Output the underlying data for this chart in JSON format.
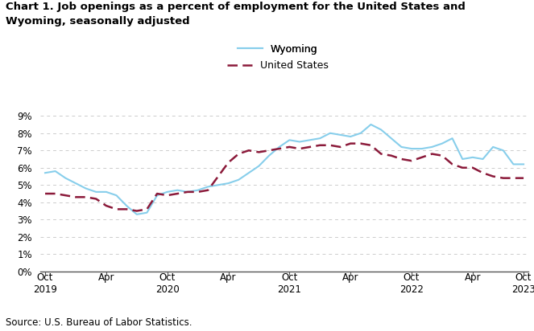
{
  "title_line1": "Chart 1. Job openings as a percent of employment for the United States and",
  "title_line2": "Wyoming, seasonally adjusted",
  "source": "Source: U.S. Bureau of Labor Statistics.",
  "wyoming_color": "#87CEEB",
  "us_color": "#8B1A3A",
  "background_color": "#FFFFFF",
  "grid_color": "#CCCCCC",
  "ylim": [
    0,
    0.09
  ],
  "yticks": [
    0,
    0.01,
    0.02,
    0.03,
    0.04,
    0.05,
    0.06,
    0.07,
    0.08,
    0.09
  ],
  "ytick_labels": [
    "0%",
    "1%",
    "2%",
    "3%",
    "4%",
    "5%",
    "6%",
    "7%",
    "8%",
    "9%"
  ],
  "wyoming": [
    0.057,
    0.058,
    0.054,
    0.051,
    0.048,
    0.046,
    0.046,
    0.044,
    0.038,
    0.033,
    0.034,
    0.044,
    0.046,
    0.047,
    0.046,
    0.047,
    0.049,
    0.05,
    0.051,
    0.053,
    0.057,
    0.061,
    0.067,
    0.072,
    0.076,
    0.075,
    0.076,
    0.077,
    0.08,
    0.079,
    0.078,
    0.08,
    0.085,
    0.082,
    0.077,
    0.072,
    0.071,
    0.071,
    0.072,
    0.074,
    0.077,
    0.065,
    0.066,
    0.065,
    0.072,
    0.07,
    0.062,
    0.062
  ],
  "us": [
    0.045,
    0.045,
    0.044,
    0.043,
    0.043,
    0.042,
    0.038,
    0.036,
    0.036,
    0.035,
    0.036,
    0.045,
    0.044,
    0.045,
    0.046,
    0.046,
    0.047,
    0.055,
    0.063,
    0.068,
    0.07,
    0.069,
    0.07,
    0.071,
    0.072,
    0.071,
    0.072,
    0.073,
    0.073,
    0.072,
    0.074,
    0.074,
    0.073,
    0.068,
    0.067,
    0.065,
    0.064,
    0.066,
    0.068,
    0.067,
    0.062,
    0.06,
    0.06,
    0.057,
    0.055,
    0.054,
    0.054,
    0.054
  ]
}
